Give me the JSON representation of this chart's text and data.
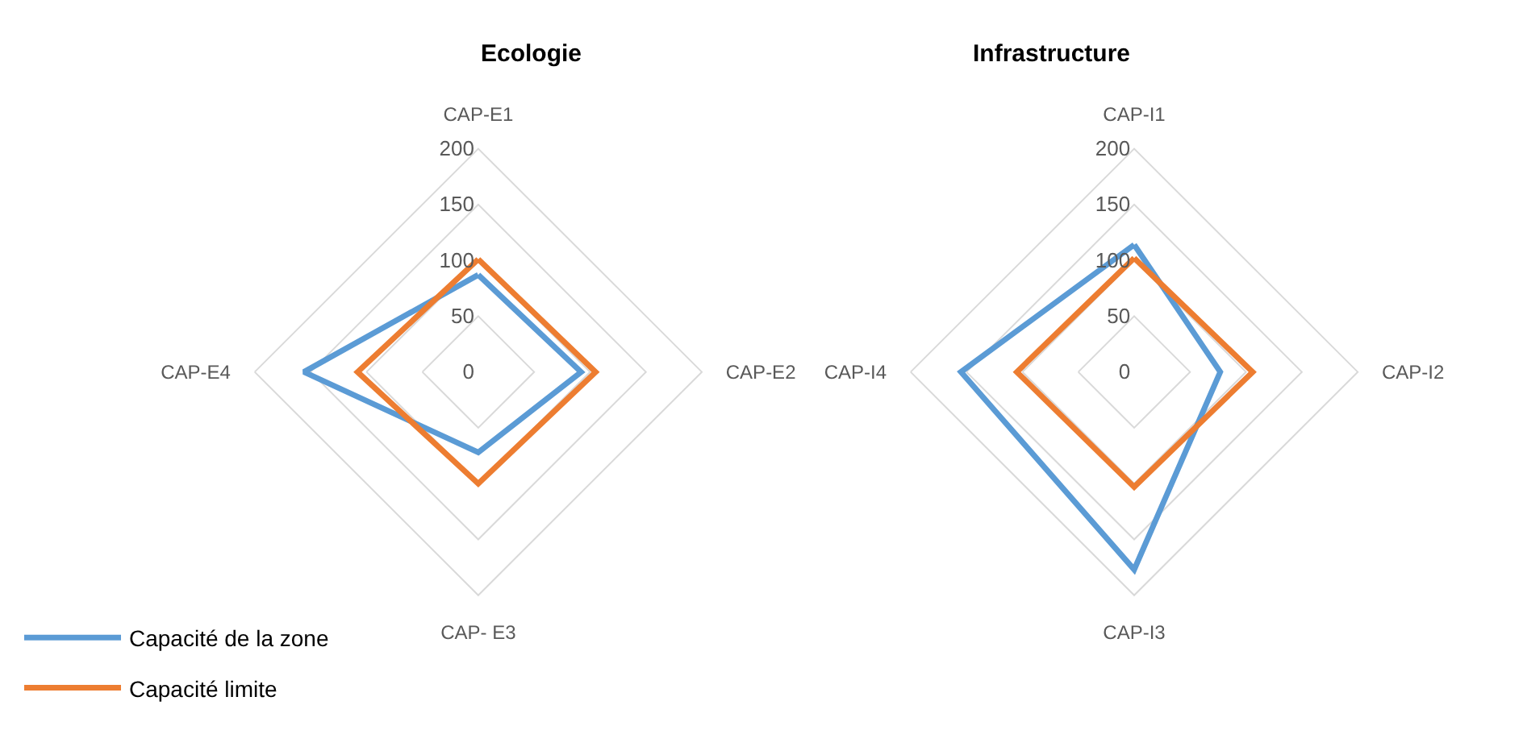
{
  "chart_data": [
    {
      "type": "radar",
      "title": "Ecologie",
      "categories": [
        "CAP-E1",
        "CAP-E2",
        "CAP- E3",
        "CAP-E4"
      ],
      "ylim": [
        0,
        200
      ],
      "yticks": [
        0,
        50,
        100,
        150,
        200
      ],
      "grid": true,
      "legend": "bottom left",
      "marker": "none",
      "line_style": "solid",
      "series": [
        {
          "name": "Capacité de la zone",
          "color": "#5b9bd5",
          "values": [
            87,
            92,
            72,
            156
          ]
        },
        {
          "name": "Capacité limite",
          "color": "#ed7d31",
          "values": [
            101,
            105,
            100,
            108
          ]
        }
      ]
    },
    {
      "type": "radar",
      "title": "Infrastructure",
      "categories": [
        "CAP-I1",
        "CAP-I2",
        "CAP-I3",
        "CAP-I4"
      ],
      "ylim": [
        0,
        200
      ],
      "yticks": [
        0,
        50,
        100,
        150,
        200
      ],
      "grid": true,
      "marker": "none",
      "line_style": "solid",
      "series": [
        {
          "color": "#5b9bd5",
          "values": [
            114,
            77,
            177,
            155
          ]
        },
        {
          "color": "#ed7d31",
          "values": [
            102,
            106,
            103,
            105
          ]
        }
      ]
    }
  ]
}
